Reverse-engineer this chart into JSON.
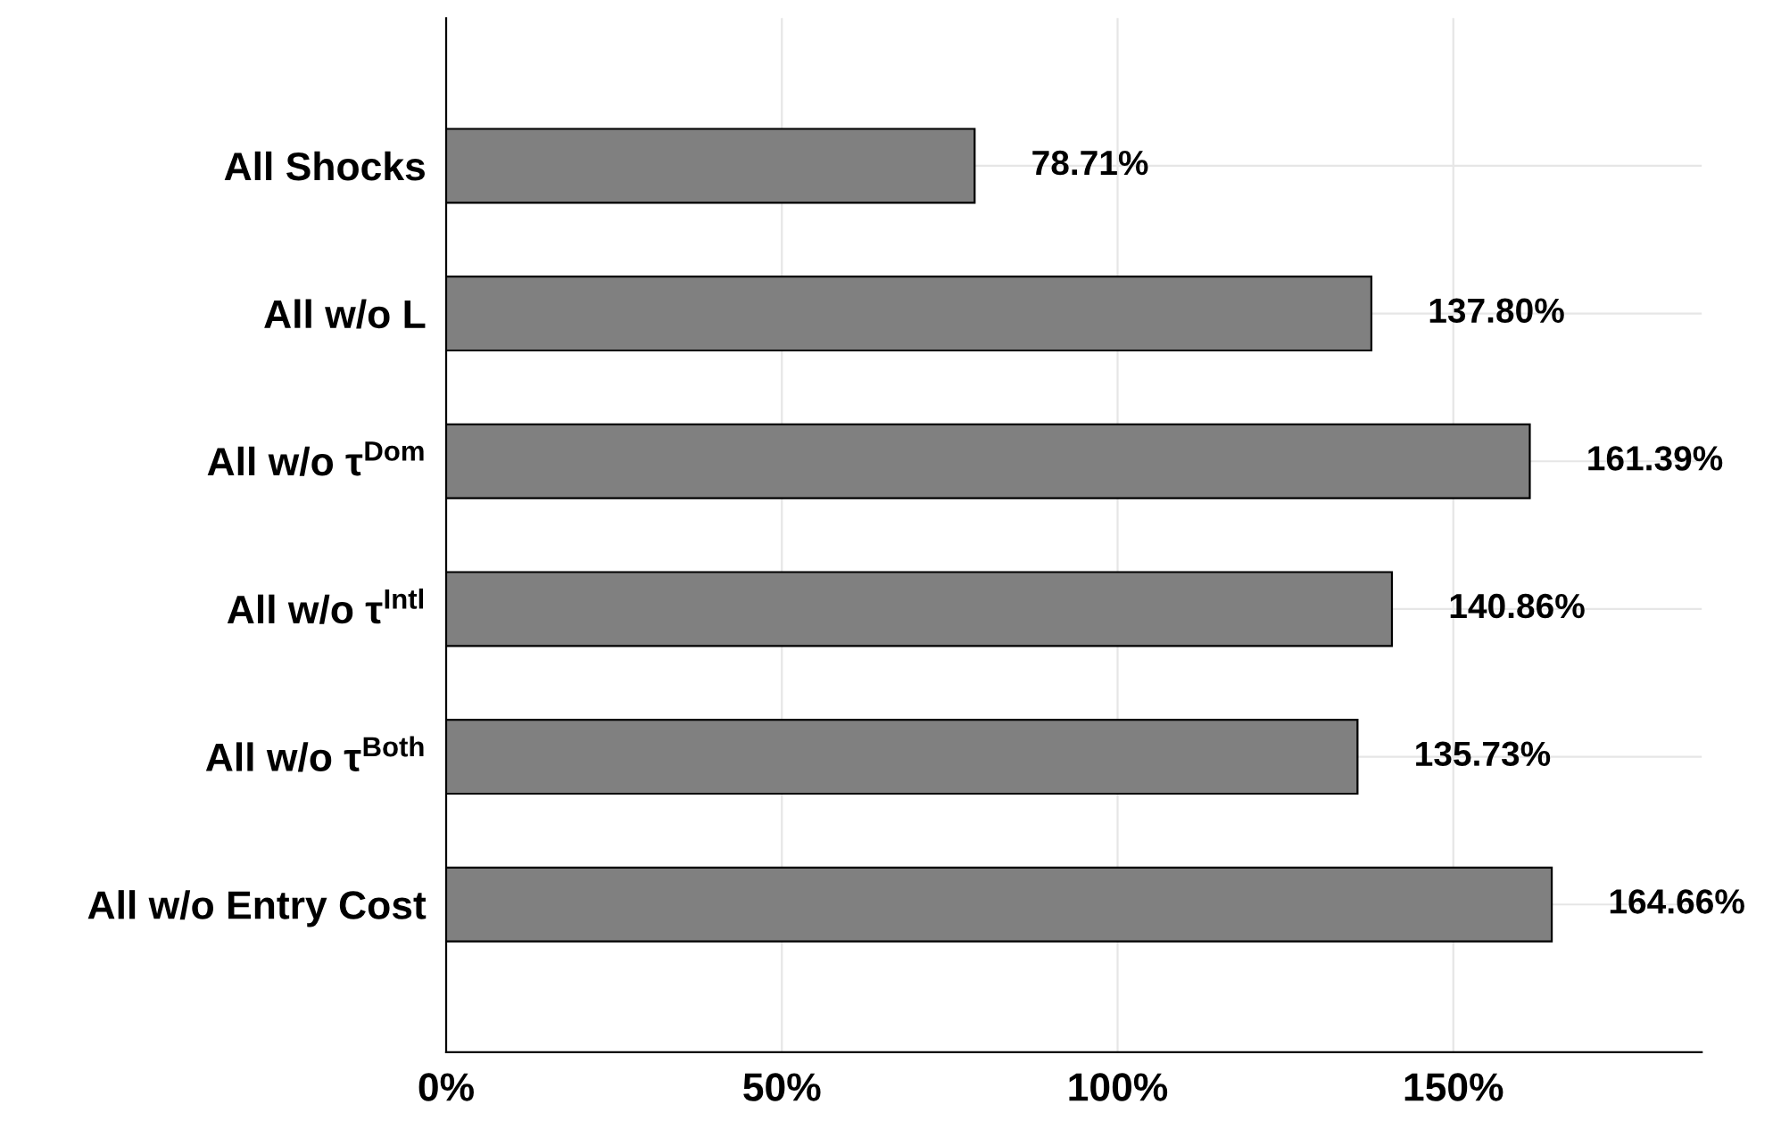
{
  "chart_data": {
    "type": "bar",
    "orientation": "horizontal",
    "categories": [
      "All Shocks",
      "All w/o L",
      "All w/o τ$^{Dom}$",
      "All w/o τ$^{Intl}$",
      "All w/o τ$^{Both}$",
      "All w/o Entry Cost"
    ],
    "values": [
      78.71,
      137.8,
      161.39,
      140.86,
      135.73,
      164.66
    ],
    "value_labels": [
      "78.71%",
      "137.80%",
      "161.39%",
      "140.86%",
      "135.73%",
      "164.66%"
    ],
    "color": "#808080",
    "xlim": [
      0,
      187
    ],
    "xticks": [
      {
        "value": 0,
        "label": "0%"
      },
      {
        "value": 50,
        "label": "50%"
      },
      {
        "value": 100,
        "label": "100%"
      },
      {
        "value": 150,
        "label": "150%"
      }
    ],
    "grid": true
  }
}
